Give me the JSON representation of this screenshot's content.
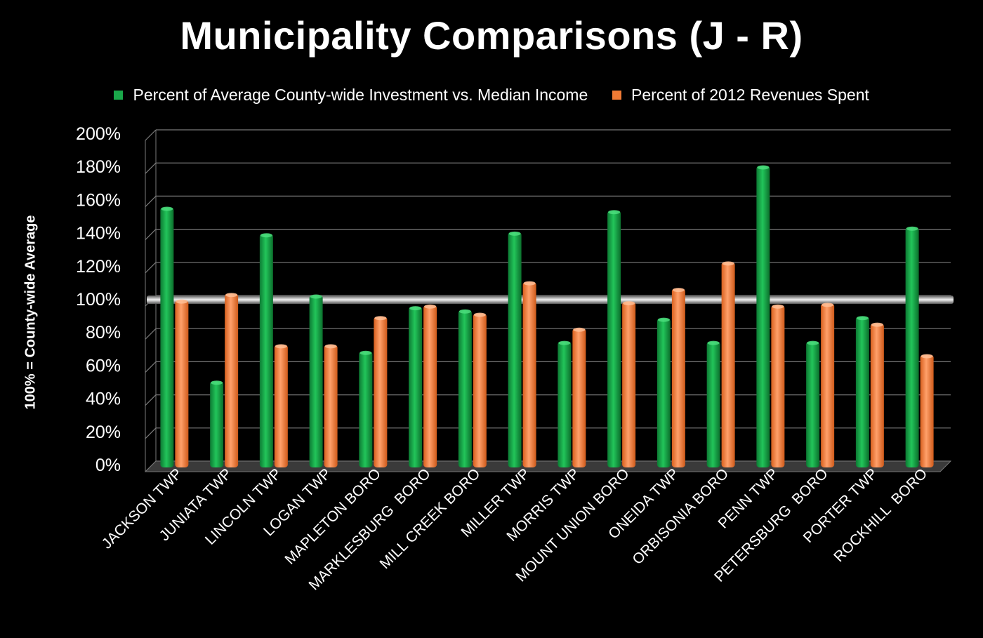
{
  "chart_data": {
    "type": "bar",
    "title": "Municipality Comparisons (J - R)",
    "ylabel": "100% = County-wide Average",
    "xlabel": "",
    "ylim": [
      0,
      200
    ],
    "y_ticks": [
      "0%",
      "20%",
      "40%",
      "60%",
      "80%",
      "100%",
      "120%",
      "140%",
      "160%",
      "180%",
      "200%"
    ],
    "reference_line": 100,
    "grid": true,
    "legend_position": "top",
    "categories": [
      "JACKSON TWP",
      "JUNIATA TWP",
      "LINCOLN TWP",
      "LOGAN TWP",
      "MAPLETON BORO",
      "MARKLESBURG  BORO",
      "MILL CREEK BORO",
      "MILLER TWP",
      "MORRIS TWP",
      "MOUNT UNION BORO",
      "ONEIDA TWP",
      "ORBISONIA BORO",
      "PENN TWP",
      "PETERSBURG  BORO",
      "PORTER TWP",
      "ROCKHILL  BORO"
    ],
    "series": [
      {
        "name": "Percent of Average County-wide Investment vs. Median Income",
        "color": "#1aa84a",
        "values": [
          157,
          52,
          141,
          104,
          70,
          97,
          95,
          142,
          76,
          155,
          90,
          76,
          182,
          76,
          91,
          145
        ]
      },
      {
        "name": "Percent of 2012 Revenues Spent",
        "color": "#f07b35",
        "values": [
          101,
          105,
          74,
          74,
          91,
          98,
          93,
          112,
          84,
          100,
          108,
          124,
          98,
          99,
          87,
          68
        ]
      }
    ]
  }
}
